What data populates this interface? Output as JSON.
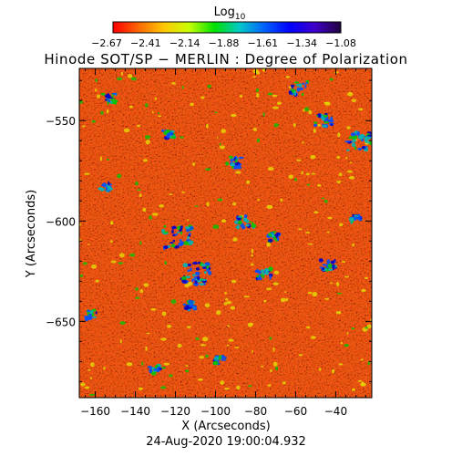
{
  "colorbar": {
    "title": "Log",
    "title_subscript": "10",
    "tick_labels": [
      "−2.67",
      "−2.41",
      "−2.14",
      "−1.88",
      "−1.61",
      "−1.34",
      "−1.08"
    ],
    "colors": [
      "#ff0000",
      "#ff6a00",
      "#ffc800",
      "#c8ff00",
      "#00e000",
      "#00c8c8",
      "#0060ff",
      "#0000ff",
      "#4000c8",
      "#200040"
    ]
  },
  "title": "Hinode SOT/SP − MERLIN : Degree of Polarization",
  "x_axis": {
    "label": "X (Arcseconds)",
    "range": [
      -168,
      -22
    ],
    "ticks": [
      -160,
      -140,
      -120,
      -100,
      -80,
      -60,
      -40
    ],
    "tick_labels": [
      "−160",
      "−140",
      "−120",
      "−100",
      "−80",
      "−60",
      "−40"
    ]
  },
  "y_axis": {
    "label": "Y (Arcseconds)",
    "range": [
      -688,
      -524
    ],
    "ticks": [
      -550,
      -600,
      -650
    ],
    "tick_labels": [
      "−550",
      "−600",
      "−650"
    ]
  },
  "timestamp": "24-Aug-2020 19:00:04.932",
  "image": {
    "background_color": "#f05a14",
    "dominant_palette": [
      "#ff2a00",
      "#ff5a00",
      "#ff8a00",
      "#ffb400",
      "#e6e600",
      "#00c800",
      "#00b4b4",
      "#0050ff",
      "#0000c8"
    ]
  }
}
